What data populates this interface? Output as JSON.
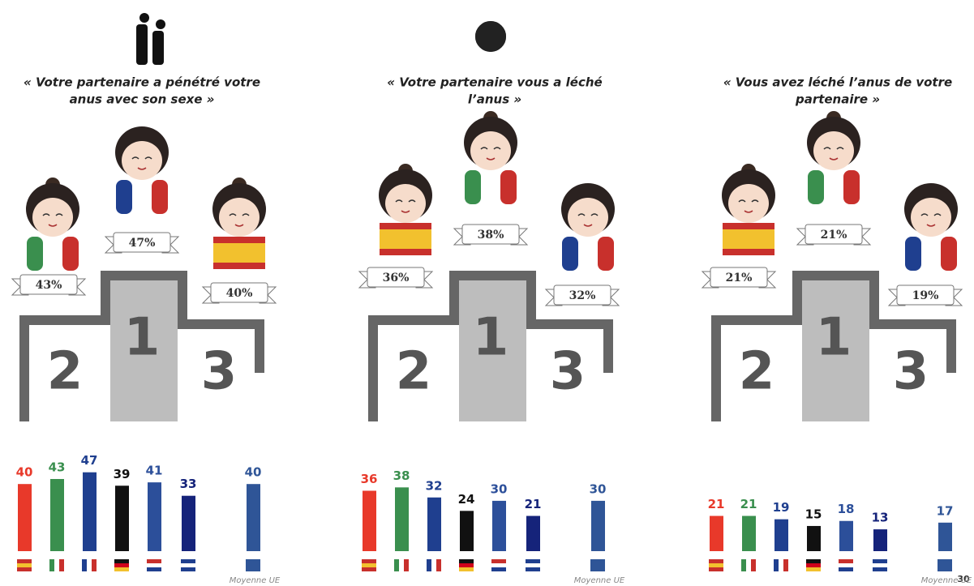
{
  "panels": [
    {
      "title_lines": [
        "« Votre partenaire a pénétré votre",
        "anus avec son sexe »"
      ],
      "podium": {
        "ranks": [
          2,
          1,
          3
        ],
        "values": [
          43,
          47,
          40
        ],
        "value_labels": [
          "43%",
          "47%",
          "40%"
        ]
      }
    },
    {
      "title_lines": [
        "« Votre partenaire vous a léché",
        "l’anus »"
      ],
      "podium": {
        "ranks": [
          2,
          1,
          3
        ],
        "values": [
          36,
          38,
          32
        ],
        "value_labels": [
          "36%",
          "38%",
          "32%"
        ]
      }
    },
    {
      "title_lines": [
        "« Vous avez léché l’anus de votre",
        "partenaire »"
      ],
      "podium": {
        "ranks": [
          2,
          1,
          3
        ],
        "values": [
          21,
          21,
          19
        ],
        "value_labels": [
          "21%",
          "21%",
          "19%"
        ]
      }
    }
  ],
  "chart_data": [
    {
      "type": "bar",
      "categories": [
        null,
        null,
        null,
        null,
        null,
        null,
        "Moyenne UE"
      ],
      "values": [
        40,
        43,
        47,
        39,
        41,
        33,
        40
      ],
      "colors": [
        "#e8392a",
        "#3a8f4e",
        "#1f3f8f",
        "#111111",
        "#2c4f9a",
        "#15237a",
        "#2f5597"
      ]
    },
    {
      "type": "bar",
      "categories": [
        null,
        null,
        null,
        null,
        null,
        null,
        "Moyenne UE"
      ],
      "values": [
        36,
        38,
        32,
        24,
        30,
        21,
        30
      ],
      "colors": [
        "#e8392a",
        "#3a8f4e",
        "#1f3f8f",
        "#111111",
        "#2c4f9a",
        "#15237a",
        "#2f5597"
      ]
    },
    {
      "type": "bar",
      "categories": [
        null,
        null,
        null,
        null,
        null,
        null,
        "Moyenne UE"
      ],
      "values": [
        21,
        21,
        19,
        15,
        18,
        13,
        17
      ],
      "colors": [
        "#e8392a",
        "#3a8f4e",
        "#1f3f8f",
        "#111111",
        "#2c4f9a",
        "#15237a",
        "#2f5597"
      ]
    }
  ],
  "page_number": "30"
}
